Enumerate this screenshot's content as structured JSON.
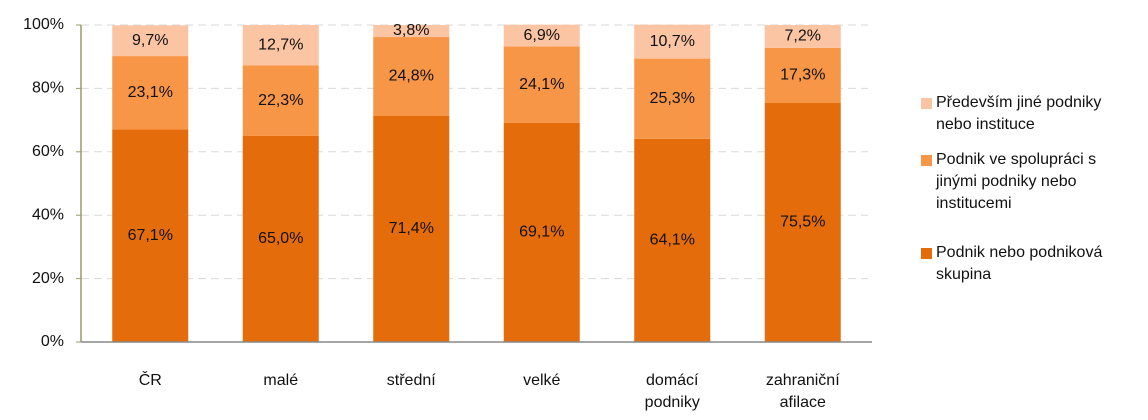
{
  "chart_data": {
    "type": "stacked_bar",
    "categories": [
      "ČR",
      "malé",
      "střední",
      "velké",
      "domácí podniky",
      "zahraniční afilace"
    ],
    "series": [
      {
        "name": "Podnik nebo podniková skupina",
        "color": "#e46c0a",
        "values": [
          67.1,
          65.0,
          71.4,
          69.1,
          64.1,
          75.5
        ],
        "value_labels": [
          "67,1%",
          "65,0%",
          "71,4%",
          "69,1%",
          "64,1%",
          "75,5%"
        ]
      },
      {
        "name": "Podnik ve spolupráci s jinými podniky nebo institucemi",
        "color": "#f79646",
        "values": [
          23.1,
          22.3,
          24.8,
          24.1,
          25.3,
          17.3
        ],
        "value_labels": [
          "23,1%",
          "22,3%",
          "24,8%",
          "24,1%",
          "25,3%",
          "17,3%"
        ]
      },
      {
        "name": "Především jiné podniky nebo instituce",
        "color": "#fbc4a2",
        "values": [
          9.7,
          12.7,
          3.8,
          6.9,
          10.7,
          7.2
        ],
        "value_labels": [
          "9,7%",
          "12,7%",
          "3,8%",
          "6,9%",
          "10,7%",
          "7,2%"
        ]
      }
    ],
    "ylim": [
      0,
      100
    ],
    "yticks": [
      {
        "value": 0,
        "label": "0%"
      },
      {
        "value": 20,
        "label": "20%"
      },
      {
        "value": 40,
        "label": "40%"
      },
      {
        "value": 60,
        "label": "60%"
      },
      {
        "value": 80,
        "label": "80%"
      },
      {
        "value": 100,
        "label": "100%"
      }
    ],
    "grid": true,
    "legend": "right"
  }
}
